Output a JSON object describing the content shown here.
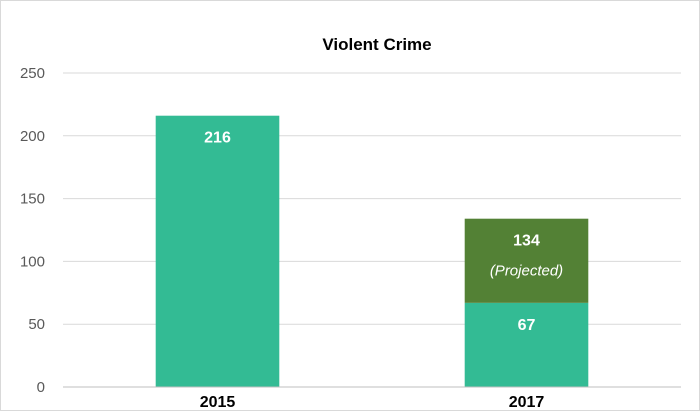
{
  "chart_data": {
    "type": "bar",
    "title": "Violent Crime",
    "categories": [
      "2015",
      "2017"
    ],
    "series": [
      {
        "values": [
          216,
          67
        ],
        "color": "#33bb94"
      },
      {
        "values": [
          0,
          67
        ],
        "color": "#538135"
      }
    ],
    "data_labels": [
      {
        "category": "2015",
        "text": "216"
      },
      {
        "category": "2017",
        "text": "67"
      },
      {
        "category": "2017",
        "text": "134",
        "note": "(Projected)"
      }
    ],
    "ylim": [
      0,
      250
    ],
    "yticks": [
      0,
      50,
      100,
      150,
      200,
      250
    ],
    "grid": true,
    "legend": "none"
  }
}
